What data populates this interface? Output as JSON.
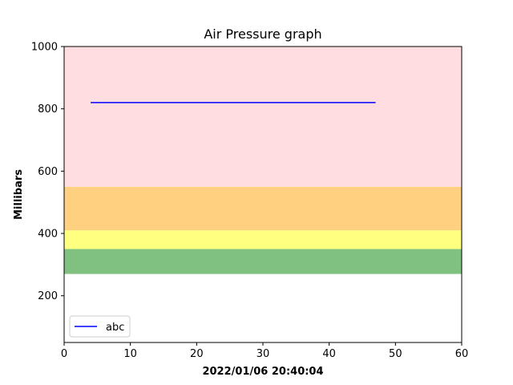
{
  "chart_data": {
    "type": "line",
    "title": "Air Pressure graph",
    "xlabel": "2022/01/06 20:40:04",
    "ylabel": "Millibars",
    "xlim": [
      0,
      60
    ],
    "ylim": [
      50,
      1000
    ],
    "x_ticks": [
      0,
      10,
      20,
      30,
      40,
      50,
      60
    ],
    "y_ticks": [
      200,
      400,
      600,
      800,
      1000
    ],
    "grid": false,
    "legend_position": "lower-left",
    "bands": [
      {
        "from": 270,
        "to": 350,
        "color": "#80c080"
      },
      {
        "from": 350,
        "to": 410,
        "color": "#ffff80"
      },
      {
        "from": 410,
        "to": 550,
        "color": "#ffd080"
      },
      {
        "from": 550,
        "to": 1000,
        "color": "#ffdde1"
      }
    ],
    "series": [
      {
        "name": "abc",
        "color": "#0000ff",
        "x": [
          4,
          47
        ],
        "y": [
          820,
          820
        ]
      }
    ]
  }
}
